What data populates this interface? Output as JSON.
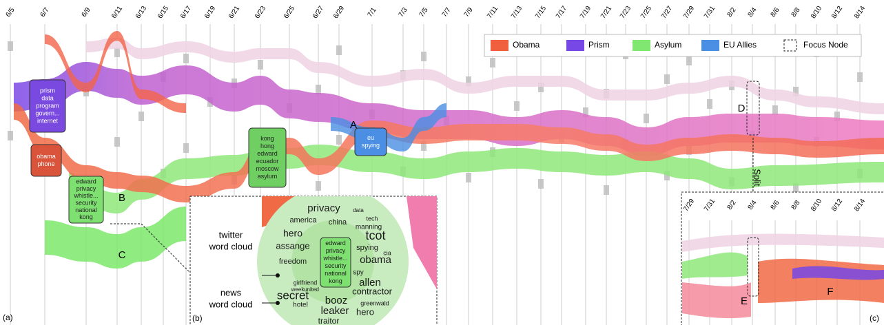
{
  "dates": [
    "6/5",
    "6/7",
    "6/9",
    "6/11",
    "6/13",
    "6/15",
    "6/17",
    "6/19",
    "6/21",
    "6/23",
    "6/25",
    "6/27",
    "6/29",
    "7/1",
    "7/3",
    "7/5",
    "7/7",
    "7/9",
    "7/11",
    "7/13",
    "7/15",
    "7/17",
    "7/19",
    "7/21",
    "7/23",
    "7/25",
    "7/27",
    "7/29",
    "7/31",
    "8/2",
    "8/4",
    "8/6",
    "8/8",
    "8/10",
    "8/12",
    "8/14"
  ],
  "legend": [
    {
      "label": "Obama",
      "color": "#f0603e"
    },
    {
      "label": "Prism",
      "color": "#7848e6"
    },
    {
      "label": "Asylum",
      "color": "#80e870"
    },
    {
      "label": "EU Allies",
      "color": "#4a8fe4"
    },
    {
      "label": "Focus Node"
    }
  ],
  "nodes": [
    {
      "lines": [
        "prism",
        "data",
        "program",
        "govern...",
        "internet"
      ],
      "color": "#7a4ae0"
    },
    {
      "lines": [
        "obama",
        "phone"
      ],
      "color": "#d9543a"
    },
    {
      "lines": [
        "edward",
        "privacy",
        "whistle...",
        "security",
        "national",
        "kong"
      ],
      "color": "#7ee070"
    },
    {
      "lines": [
        "kong",
        "hong",
        "edward",
        "ecuador",
        "moscow",
        "asylum"
      ],
      "color": "#6fcf62"
    },
    {
      "lines": [
        "eu",
        "spying"
      ],
      "color": "#4a8fe4"
    }
  ],
  "annotations": [
    "A",
    "B",
    "C",
    "D",
    "E",
    "F"
  ],
  "split": "Split",
  "panels": [
    "(a)",
    "(b)",
    "(c)"
  ],
  "callouts": [
    {
      "lines": [
        "twitter",
        "word cloud"
      ]
    },
    {
      "lines": [
        "news",
        "word cloud"
      ]
    }
  ],
  "word_cloud": [
    "privacy",
    "data",
    "america",
    "tech",
    "china",
    "manning",
    "hero",
    "tcot",
    "assange",
    "spying",
    "cia",
    "freedom",
    "obama",
    "spy",
    "allen",
    "contractor",
    "secret",
    "booz",
    "leaker",
    "hero",
    "traitor",
    "hotel",
    "greenwald",
    "girlfriend",
    "week",
    "united"
  ],
  "inset_dates": [
    "7/29",
    "7/31",
    "8/2",
    "8/4",
    "8/6",
    "8/8",
    "8/10",
    "8/12",
    "8/14"
  ]
}
